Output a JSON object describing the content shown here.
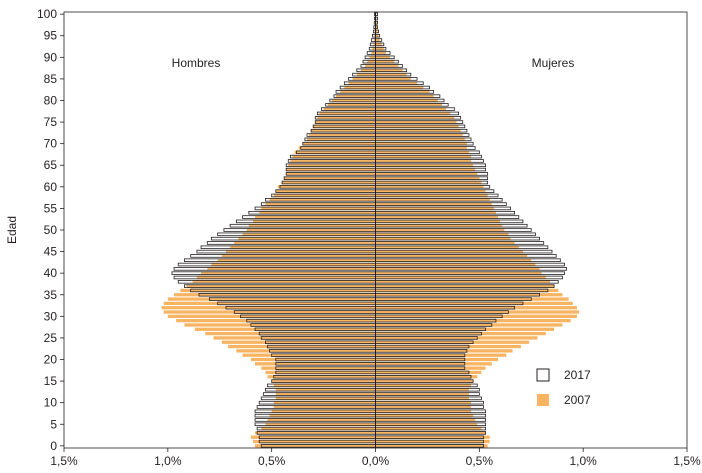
{
  "chart_data": {
    "type": "bar",
    "subtype": "population-pyramid",
    "title": "",
    "ylabel": "Edad",
    "xlabel": "",
    "side_labels": {
      "left": "Hombres",
      "right": "Mujeres"
    },
    "xlim": [
      -1.5,
      1.5
    ],
    "ylim": [
      0,
      100
    ],
    "x_ticks": [
      -1.5,
      -1.0,
      -0.5,
      0.0,
      0.5,
      1.0,
      1.5
    ],
    "x_tick_labels": [
      "1,5%",
      "1,0%",
      "0,5%",
      "0,0%",
      "0,5%",
      "1,0%",
      "1,5%"
    ],
    "y_ticks": [
      0,
      5,
      10,
      15,
      20,
      25,
      30,
      35,
      40,
      45,
      50,
      55,
      60,
      65,
      70,
      75,
      80,
      85,
      90,
      95,
      100
    ],
    "grid": false,
    "legend": {
      "position": "right",
      "entries": [
        "2017",
        "2007"
      ]
    },
    "colors": {
      "2017_fill": "#ffffff",
      "2017_stroke": "#231f20",
      "2007_fill": "#f7b564",
      "axis": "#231f20"
    },
    "ages": [
      0,
      1,
      2,
      3,
      4,
      5,
      6,
      7,
      8,
      9,
      10,
      11,
      12,
      13,
      14,
      15,
      16,
      17,
      18,
      19,
      20,
      21,
      22,
      23,
      24,
      25,
      26,
      27,
      28,
      29,
      30,
      31,
      32,
      33,
      34,
      35,
      36,
      37,
      38,
      39,
      40,
      41,
      42,
      43,
      44,
      45,
      46,
      47,
      48,
      49,
      50,
      51,
      52,
      53,
      54,
      55,
      56,
      57,
      58,
      59,
      60,
      61,
      62,
      63,
      64,
      65,
      66,
      67,
      68,
      69,
      70,
      71,
      72,
      73,
      74,
      75,
      76,
      77,
      78,
      79,
      80,
      81,
      82,
      83,
      84,
      85,
      86,
      87,
      88,
      89,
      90,
      91,
      92,
      93,
      94,
      95,
      96,
      97,
      98,
      99,
      100
    ],
    "series": [
      {
        "name": "2017",
        "men": [
          0.55,
          0.56,
          0.56,
          0.57,
          0.57,
          0.58,
          0.58,
          0.58,
          0.58,
          0.57,
          0.56,
          0.55,
          0.54,
          0.53,
          0.52,
          0.5,
          0.49,
          0.48,
          0.48,
          0.48,
          0.48,
          0.5,
          0.51,
          0.52,
          0.53,
          0.55,
          0.56,
          0.58,
          0.6,
          0.62,
          0.65,
          0.68,
          0.72,
          0.76,
          0.8,
          0.85,
          0.89,
          0.92,
          0.95,
          0.97,
          0.98,
          0.97,
          0.95,
          0.92,
          0.89,
          0.86,
          0.84,
          0.81,
          0.79,
          0.76,
          0.73,
          0.7,
          0.67,
          0.64,
          0.61,
          0.58,
          0.55,
          0.53,
          0.5,
          0.48,
          0.46,
          0.45,
          0.44,
          0.43,
          0.43,
          0.43,
          0.42,
          0.41,
          0.38,
          0.36,
          0.35,
          0.34,
          0.33,
          0.31,
          0.3,
          0.29,
          0.29,
          0.28,
          0.26,
          0.24,
          0.22,
          0.2,
          0.19,
          0.17,
          0.15,
          0.13,
          0.11,
          0.09,
          0.07,
          0.06,
          0.05,
          0.04,
          0.03,
          0.025,
          0.02,
          0.015,
          0.01,
          0.008,
          0.006,
          0.005,
          0.005
        ],
        "women": [
          0.52,
          0.52,
          0.52,
          0.53,
          0.53,
          0.53,
          0.53,
          0.53,
          0.53,
          0.52,
          0.52,
          0.51,
          0.5,
          0.5,
          0.49,
          0.47,
          0.46,
          0.45,
          0.43,
          0.43,
          0.43,
          0.43,
          0.44,
          0.45,
          0.47,
          0.49,
          0.51,
          0.53,
          0.56,
          0.58,
          0.61,
          0.64,
          0.67,
          0.71,
          0.75,
          0.79,
          0.83,
          0.86,
          0.88,
          0.9,
          0.91,
          0.92,
          0.91,
          0.89,
          0.87,
          0.85,
          0.83,
          0.81,
          0.79,
          0.77,
          0.75,
          0.73,
          0.71,
          0.69,
          0.67,
          0.65,
          0.63,
          0.61,
          0.59,
          0.57,
          0.55,
          0.54,
          0.54,
          0.54,
          0.53,
          0.53,
          0.52,
          0.51,
          0.5,
          0.48,
          0.47,
          0.46,
          0.45,
          0.44,
          0.43,
          0.42,
          0.41,
          0.4,
          0.38,
          0.35,
          0.33,
          0.31,
          0.28,
          0.26,
          0.23,
          0.2,
          0.17,
          0.15,
          0.13,
          0.11,
          0.09,
          0.07,
          0.05,
          0.04,
          0.03,
          0.02,
          0.015,
          0.01,
          0.01,
          0.01,
          0.01
        ]
      },
      {
        "name": "2007",
        "men": [
          0.58,
          0.59,
          0.6,
          0.58,
          0.55,
          0.53,
          0.52,
          0.51,
          0.5,
          0.49,
          0.49,
          0.48,
          0.48,
          0.48,
          0.49,
          0.5,
          0.52,
          0.53,
          0.55,
          0.58,
          0.6,
          0.64,
          0.67,
          0.71,
          0.74,
          0.78,
          0.82,
          0.87,
          0.92,
          0.96,
          1.0,
          1.02,
          1.03,
          1.02,
          1.0,
          0.97,
          0.94,
          0.91,
          0.88,
          0.86,
          0.84,
          0.81,
          0.79,
          0.76,
          0.74,
          0.72,
          0.7,
          0.68,
          0.66,
          0.64,
          0.62,
          0.61,
          0.59,
          0.58,
          0.56,
          0.55,
          0.53,
          0.51,
          0.49,
          0.48,
          0.47,
          0.45,
          0.44,
          0.43,
          0.43,
          0.42,
          0.41,
          0.4,
          0.39,
          0.37,
          0.35,
          0.33,
          0.32,
          0.31,
          0.3,
          0.29,
          0.28,
          0.27,
          0.25,
          0.23,
          0.21,
          0.19,
          0.17,
          0.15,
          0.13,
          0.11,
          0.09,
          0.07,
          0.05,
          0.04,
          0.03,
          0.02,
          0.015,
          0.01,
          0.008,
          0.006,
          0.004,
          0.003,
          0.002,
          0.001,
          0.001
        ],
        "women": [
          0.54,
          0.55,
          0.55,
          0.53,
          0.51,
          0.49,
          0.48,
          0.47,
          0.46,
          0.46,
          0.46,
          0.45,
          0.45,
          0.45,
          0.46,
          0.47,
          0.49,
          0.51,
          0.53,
          0.56,
          0.59,
          0.63,
          0.66,
          0.7,
          0.74,
          0.78,
          0.82,
          0.86,
          0.9,
          0.94,
          0.97,
          0.98,
          0.97,
          0.95,
          0.93,
          0.9,
          0.88,
          0.86,
          0.84,
          0.82,
          0.8,
          0.79,
          0.77,
          0.75,
          0.73,
          0.71,
          0.69,
          0.67,
          0.65,
          0.64,
          0.62,
          0.61,
          0.6,
          0.59,
          0.58,
          0.57,
          0.56,
          0.55,
          0.54,
          0.53,
          0.52,
          0.51,
          0.5,
          0.49,
          0.48,
          0.47,
          0.46,
          0.46,
          0.45,
          0.44,
          0.44,
          0.43,
          0.42,
          0.41,
          0.4,
          0.39,
          0.38,
          0.36,
          0.34,
          0.32,
          0.3,
          0.28,
          0.26,
          0.23,
          0.2,
          0.17,
          0.15,
          0.13,
          0.11,
          0.09,
          0.07,
          0.05,
          0.04,
          0.03,
          0.02,
          0.015,
          0.01,
          0.008,
          0.006,
          0.004,
          0.003
        ]
      }
    ]
  }
}
